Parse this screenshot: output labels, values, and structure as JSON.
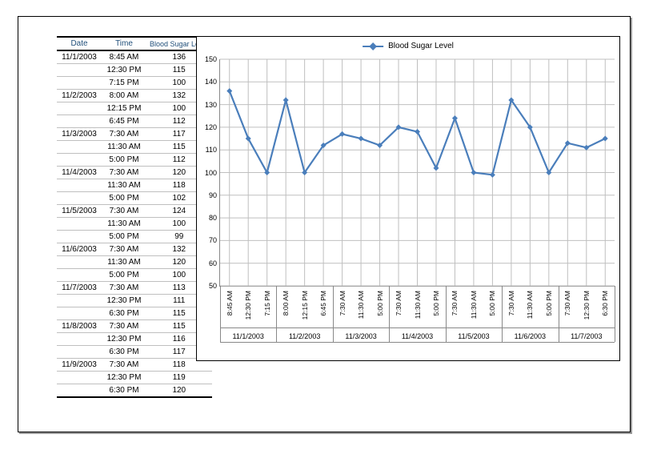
{
  "table": {
    "headers": {
      "date": "Date",
      "time": "Time",
      "level": "Blood Sugar Level"
    },
    "rows": [
      {
        "date": "11/1/2003",
        "time": "8:45 AM",
        "value": 136,
        "group_start": true
      },
      {
        "date": "",
        "time": "12:30 PM",
        "value": 115
      },
      {
        "date": "",
        "time": "7:15 PM",
        "value": 100
      },
      {
        "date": "11/2/2003",
        "time": "8:00 AM",
        "value": 132,
        "group_start": true
      },
      {
        "date": "",
        "time": "12:15 PM",
        "value": 100
      },
      {
        "date": "",
        "time": "6:45 PM",
        "value": 112
      },
      {
        "date": "11/3/2003",
        "time": "7:30 AM",
        "value": 117,
        "group_start": true
      },
      {
        "date": "",
        "time": "11:30 AM",
        "value": 115
      },
      {
        "date": "",
        "time": "5:00 PM",
        "value": 112
      },
      {
        "date": "11/4/2003",
        "time": "7:30 AM",
        "value": 120,
        "group_start": true
      },
      {
        "date": "",
        "time": "11:30 AM",
        "value": 118
      },
      {
        "date": "",
        "time": "5:00 PM",
        "value": 102
      },
      {
        "date": "11/5/2003",
        "time": "7:30 AM",
        "value": 124,
        "group_start": true
      },
      {
        "date": "",
        "time": "11:30 AM",
        "value": 100
      },
      {
        "date": "",
        "time": "5:00 PM",
        "value": 99
      },
      {
        "date": "11/6/2003",
        "time": "7:30 AM",
        "value": 132,
        "group_start": true
      },
      {
        "date": "",
        "time": "11:30 AM",
        "value": 120
      },
      {
        "date": "",
        "time": "5:00 PM",
        "value": 100
      },
      {
        "date": "11/7/2003",
        "time": "7:30 AM",
        "value": 113,
        "group_start": true
      },
      {
        "date": "",
        "time": "12:30 PM",
        "value": 111
      },
      {
        "date": "",
        "time": "6:30 PM",
        "value": 115
      },
      {
        "date": "11/8/2003",
        "time": "7:30 AM",
        "value": 115,
        "group_start": true
      },
      {
        "date": "",
        "time": "12:30 PM",
        "value": 116
      },
      {
        "date": "",
        "time": "6:30 PM",
        "value": 117
      },
      {
        "date": "11/9/2003",
        "time": "7:30 AM",
        "value": 118,
        "group_start": true
      },
      {
        "date": "",
        "time": "12:30 PM",
        "value": 119
      },
      {
        "date": "",
        "time": "6:30 PM",
        "value": 120,
        "last": true
      }
    ]
  },
  "chart": {
    "type": "line",
    "legend_label": "Blood Sugar Level",
    "line_color": "#4a7ebb",
    "line_width": 2.2,
    "marker": "diamond",
    "marker_size": 7,
    "grid_color": "#bfbfbf",
    "background_color": "#ffffff",
    "ylim": [
      50,
      150
    ],
    "ytick_step": 10,
    "tick_fontsize": 9,
    "n_points": 21,
    "x_time_labels": [
      "8:45 AM",
      "12:30 PM",
      "7:15 PM",
      "8:00 AM",
      "12:15 PM",
      "6:45 PM",
      "7:30 AM",
      "11:30 AM",
      "5:00 PM",
      "7:30 AM",
      "11:30 AM",
      "5:00 PM",
      "7:30 AM",
      "11:30 AM",
      "5:00 PM",
      "7:30 AM",
      "11:30 AM",
      "5:00 PM",
      "7:30 AM",
      "12:30 PM",
      "6:30 PM"
    ],
    "x_groups": [
      {
        "label": "11/1/2003",
        "start": 0,
        "end": 3
      },
      {
        "label": "11/2/2003",
        "start": 3,
        "end": 6
      },
      {
        "label": "11/3/2003",
        "start": 6,
        "end": 9
      },
      {
        "label": "11/4/2003",
        "start": 9,
        "end": 12
      },
      {
        "label": "11/5/2003",
        "start": 12,
        "end": 15
      },
      {
        "label": "11/6/2003",
        "start": 15,
        "end": 18
      },
      {
        "label": "11/7/2003",
        "start": 18,
        "end": 21
      }
    ],
    "values": [
      136,
      115,
      100,
      132,
      100,
      112,
      117,
      115,
      112,
      120,
      118,
      102,
      124,
      100,
      99,
      132,
      120,
      100,
      113,
      111,
      115
    ]
  }
}
